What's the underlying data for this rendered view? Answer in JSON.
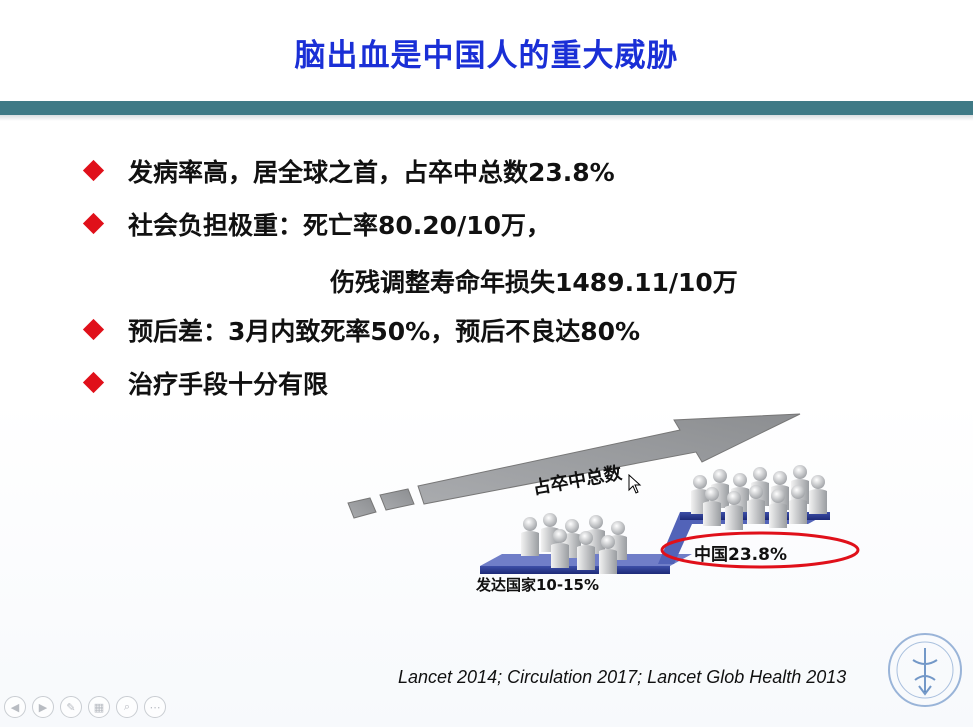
{
  "slide": {
    "title": "脑出血是中国人的重大威胁",
    "bullets": [
      "发病率高，居全球之首，占卒中总数23.8%",
      "社会负担极重：死亡率80.20/10万，",
      "预后差：3月内致死率50%，预后不良达80%",
      "治疗手段十分有限"
    ],
    "bullet_continuation": "伤残调整寿命年损失1489.11/10万",
    "illustration": {
      "label_total": "占卒中总数",
      "label_developed": "发达国家10-15%",
      "label_china": "中国23.8%",
      "highlight_color": "#e0101a"
    },
    "citation": "Lancet 2014; Circulation 2017; Lancet Glob Health 2013"
  },
  "colors": {
    "title": "#1a2fd6",
    "header_bar": "#3f7a86",
    "bullet_marker": "#e0101a"
  },
  "toolbar": {
    "buttons": [
      "prev-icon",
      "next-icon",
      "pen-icon",
      "slides-icon",
      "zoom-icon",
      "more-icon"
    ]
  }
}
